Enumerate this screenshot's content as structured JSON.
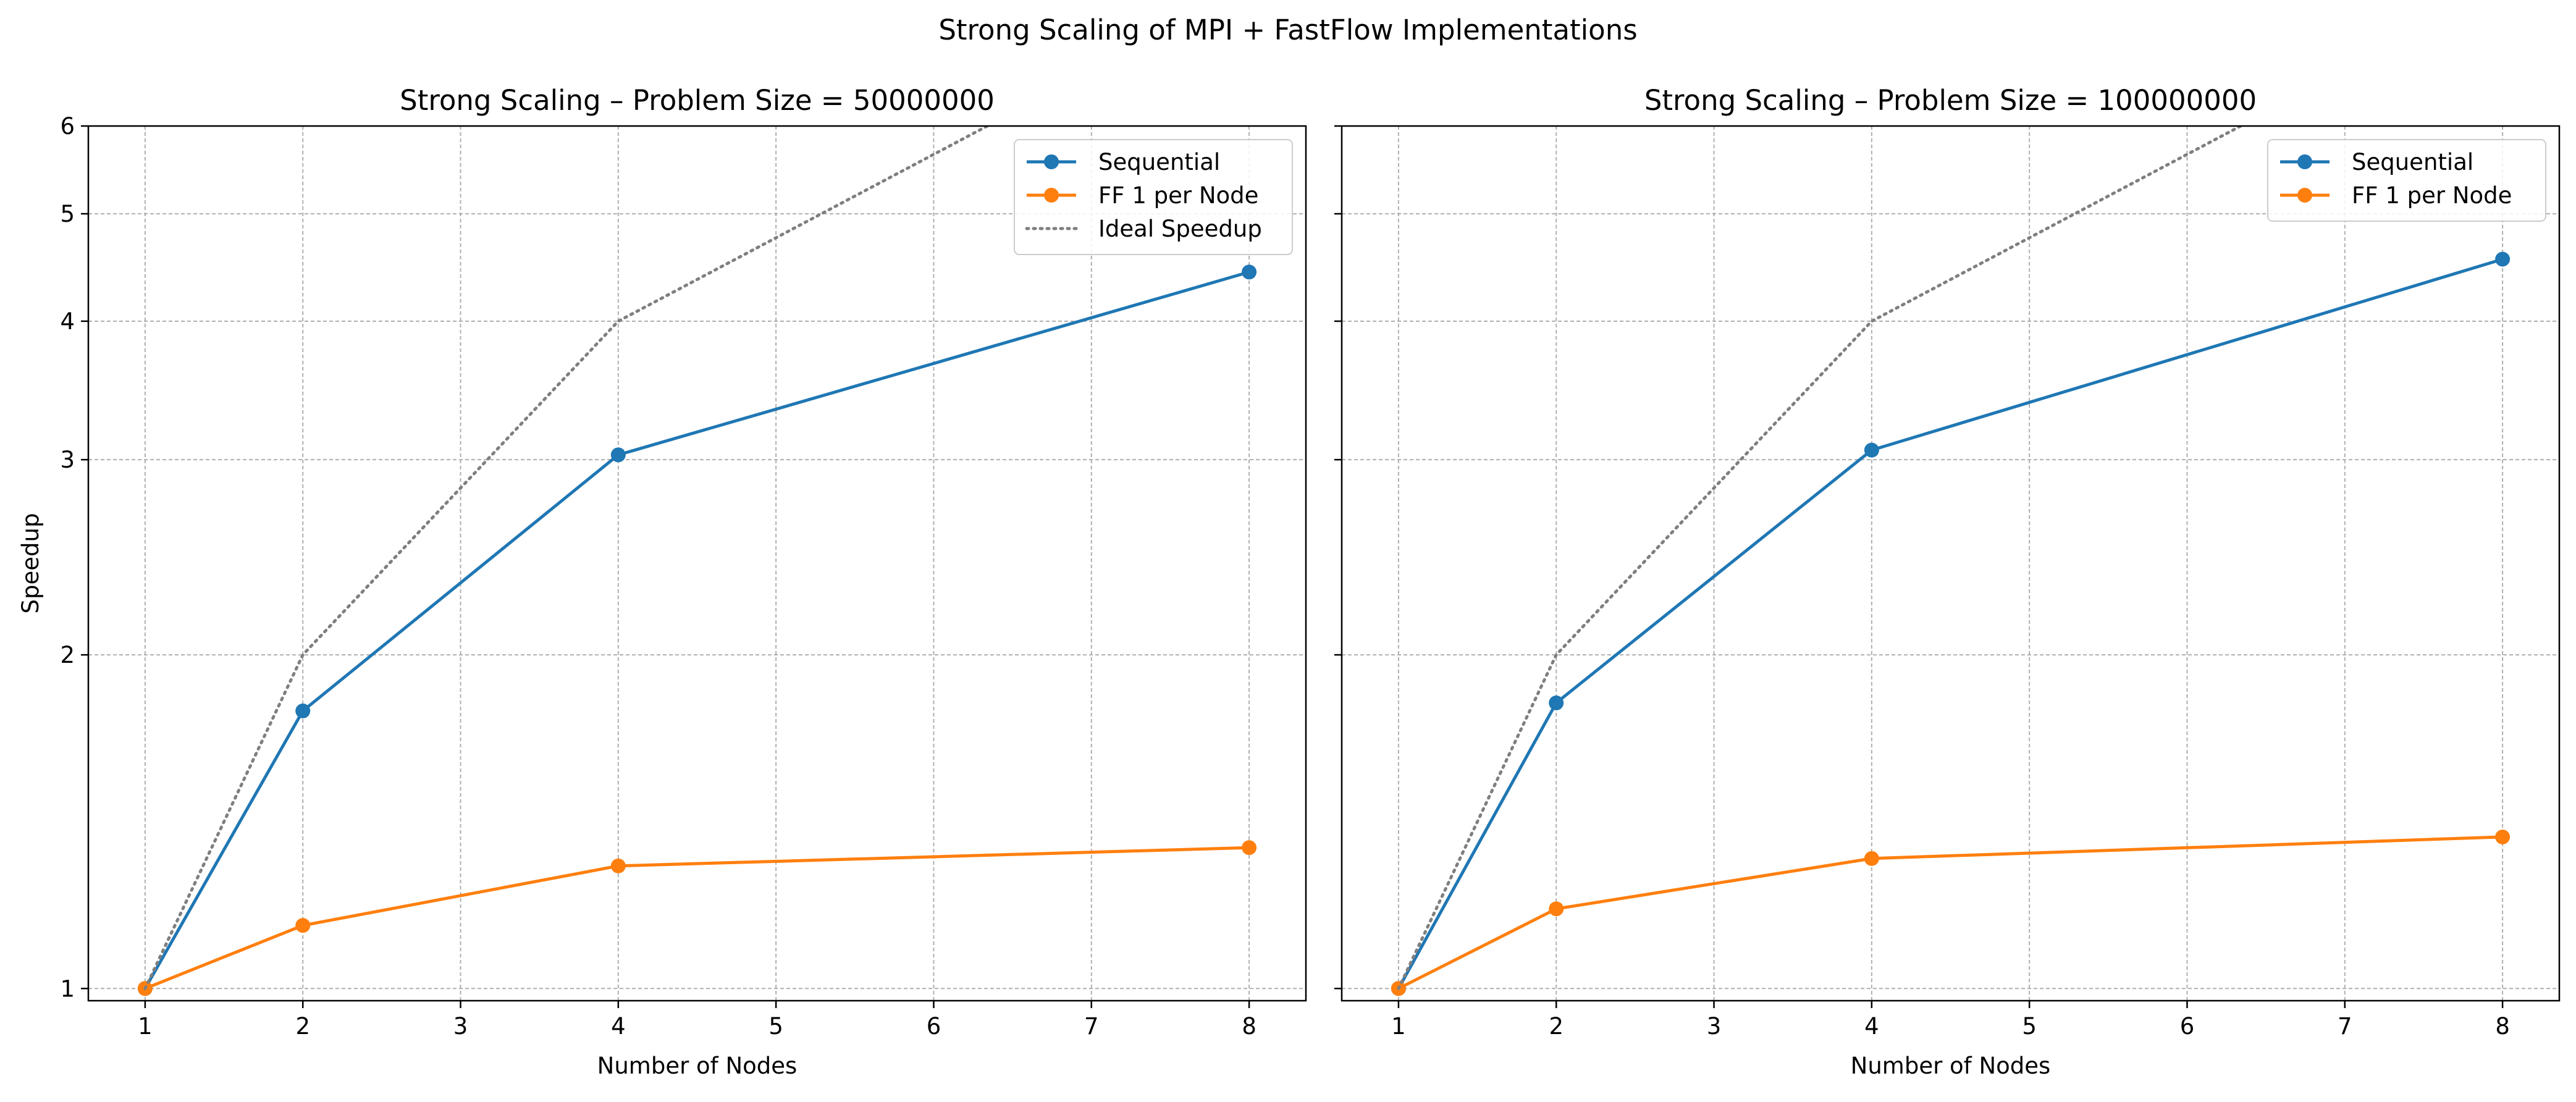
{
  "figure": {
    "suptitle": "Strong Scaling of MPI + FastFlow Implementations"
  },
  "chart_data": [
    {
      "type": "line",
      "title": "Strong Scaling – Problem Size = 50000000",
      "xlabel": "Number of Nodes",
      "ylabel": "Speedup",
      "xlim": [
        0.64,
        8.36
      ],
      "ylim": [
        0.975,
        6.0
      ],
      "yscale": "log",
      "xticks": [
        1,
        2,
        3,
        4,
        5,
        6,
        7,
        8
      ],
      "yticks": [
        1,
        2,
        3,
        4,
        5,
        6
      ],
      "grid": true,
      "legend": "top-right",
      "series": [
        {
          "name": "Sequential",
          "x": [
            1,
            2,
            4,
            8
          ],
          "y": [
            1.0,
            1.78,
            3.03,
            4.43
          ],
          "color": "#1f77b4",
          "style": "solid-marker"
        },
        {
          "name": "FF 1 per Node",
          "x": [
            1,
            2,
            4,
            8
          ],
          "y": [
            1.0,
            1.14,
            1.29,
            1.34
          ],
          "color": "#ff7f0e",
          "style": "solid-marker"
        },
        {
          "name": "Ideal Speedup",
          "x": [
            1,
            2,
            4,
            8
          ],
          "y": [
            1,
            2,
            4,
            8
          ],
          "color": "#7f7f7f",
          "style": "dotted"
        }
      ]
    },
    {
      "type": "line",
      "title": "Strong Scaling – Problem Size = 100000000",
      "xlabel": "Number of Nodes",
      "ylabel": "",
      "xlim": [
        0.64,
        8.36
      ],
      "ylim": [
        0.975,
        6.0
      ],
      "yscale": "log",
      "xticks": [
        1,
        2,
        3,
        4,
        5,
        6,
        7,
        8
      ],
      "yticks": [
        1,
        2,
        3,
        4,
        5,
        6
      ],
      "ytick_labels_visible": false,
      "grid": true,
      "legend": "top-right",
      "series": [
        {
          "name": "Sequential",
          "x": [
            1,
            2,
            4,
            8
          ],
          "y": [
            1.0,
            1.81,
            3.06,
            4.55
          ],
          "color": "#1f77b4",
          "style": "solid-marker"
        },
        {
          "name": "FF 1 per Node",
          "x": [
            1,
            2,
            4,
            8
          ],
          "y": [
            1.0,
            1.18,
            1.31,
            1.37
          ],
          "color": "#ff7f0e",
          "style": "solid-marker"
        },
        {
          "name": "",
          "x": [
            1,
            2,
            4,
            8
          ],
          "y": [
            1,
            2,
            4,
            8
          ],
          "color": "#7f7f7f",
          "style": "dotted"
        }
      ]
    }
  ]
}
